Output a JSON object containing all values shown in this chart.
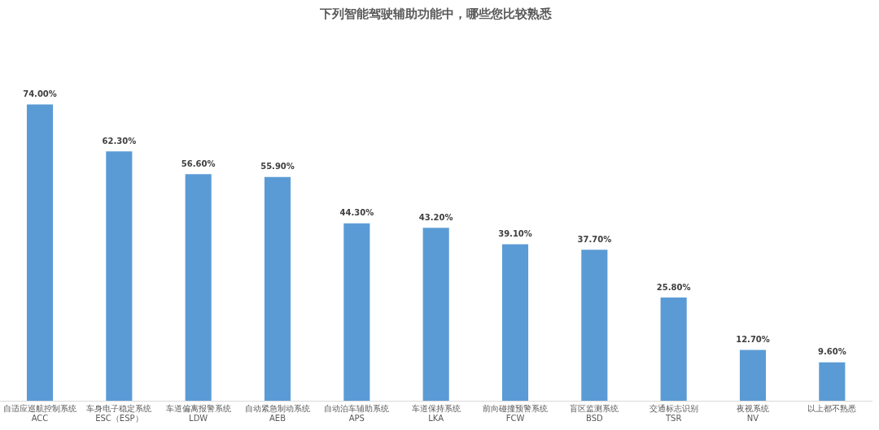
{
  "chart_data": {
    "type": "bar",
    "title": "下列智能驾驶辅助功能中，哪些您比较熟悉",
    "categories": [
      "自适应巡航控制系统ACC",
      "车身电子稳定系统ESC（ESP）",
      "车道偏离报警系统LDW",
      "自动紧急制动系统AEB",
      "自动泊车辅助系统APS",
      "车道保持系统LKA",
      "前向碰撞预警系统FCW",
      "盲区监测系统BSD",
      "交通标志识别TSR",
      "夜视系统NV",
      "以上都不熟悉"
    ],
    "values": [
      74.0,
      62.3,
      56.6,
      55.9,
      44.3,
      43.2,
      39.1,
      37.7,
      25.8,
      12.7,
      9.6
    ],
    "color": "#5b9bd5",
    "value_labels": [
      "74.00%",
      "62.30%",
      "56.60%",
      "55.90%",
      "44.30%",
      "43.20%",
      "39.10%",
      "37.70%",
      "25.80%",
      "12.70%",
      "9.60%"
    ]
  }
}
